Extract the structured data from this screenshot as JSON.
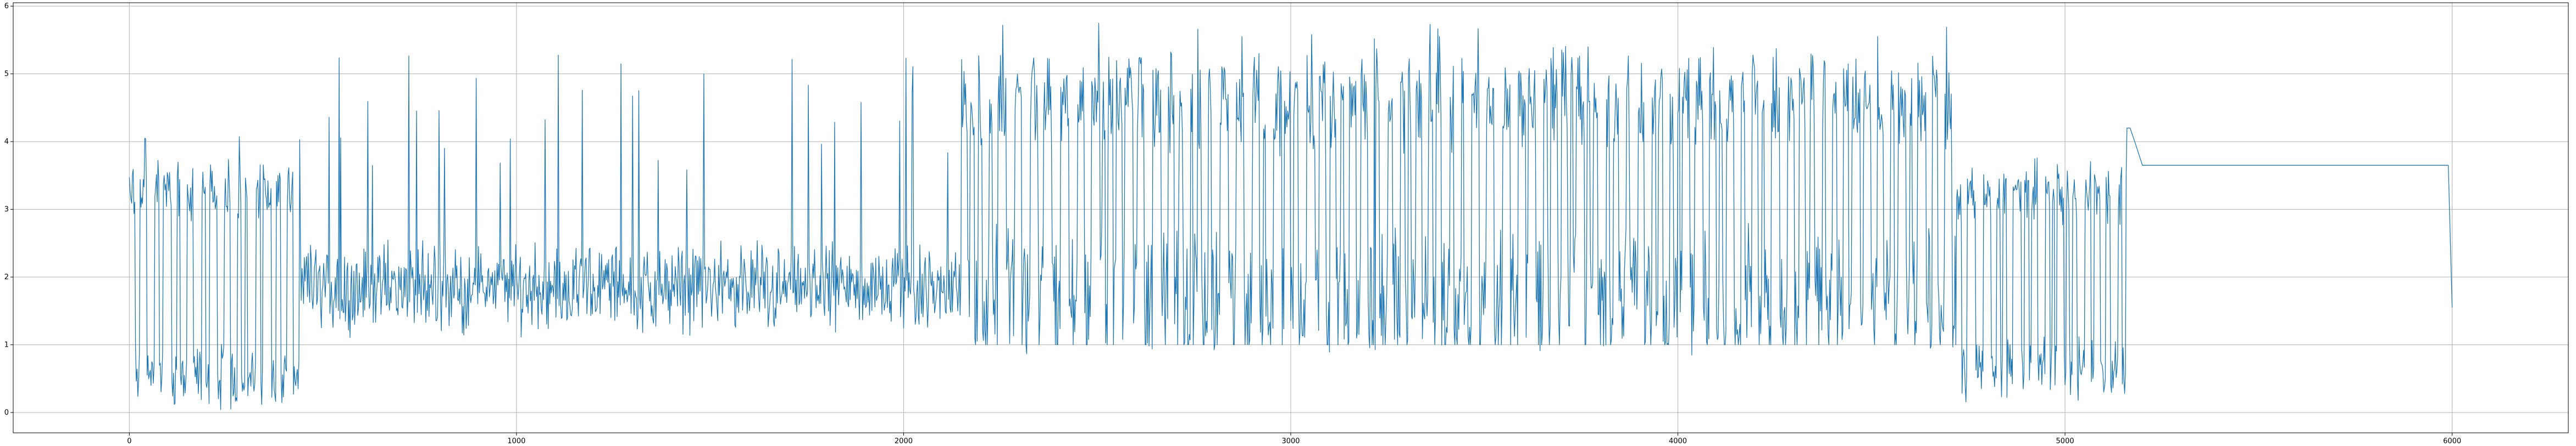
{
  "chart_data": {
    "type": "line",
    "title": "",
    "xlabel": "",
    "ylabel": "",
    "xlim": [
      -300,
      6300
    ],
    "ylim": [
      -0.3,
      6.05
    ],
    "grid": true,
    "line_color": "#1f77b4",
    "x_ticks": [
      0,
      1000,
      2000,
      3000,
      4000,
      5000,
      6000
    ],
    "x_tick_labels": [
      "0",
      "1000",
      "2000",
      "3000",
      "4000",
      "5000",
      "6000"
    ],
    "y_ticks": [
      0,
      1,
      2,
      3,
      4,
      5,
      6
    ],
    "y_tick_labels": [
      "0",
      "1",
      "2",
      "3",
      "4",
      "5",
      "6"
    ],
    "series": [
      {
        "segments": [
          {
            "x_start": 0,
            "x_end": 440,
            "pattern": "oscillating",
            "low": 0.2,
            "high": 3.6,
            "spike_max": 4.1
          },
          {
            "x_start": 440,
            "x_end": 2150,
            "pattern": "noisy_band_with_spikes",
            "low": 1.0,
            "high": 2.3,
            "spike_max": 5.4
          },
          {
            "x_start": 2150,
            "x_end": 4720,
            "pattern": "oscillating_with_noise",
            "low": 1.0,
            "high": 5.2,
            "spike_max": 5.8
          },
          {
            "x_start": 4720,
            "x_end": 5160,
            "pattern": "oscillating",
            "low": 0.3,
            "high": 3.5,
            "spike_max": 3.9
          },
          {
            "x_start": 5160,
            "x_end": 5200,
            "pattern": "peak",
            "low": 3.65,
            "high": 4.2,
            "spike_max": 4.2
          },
          {
            "x_start": 5200,
            "x_end": 5990,
            "pattern": "flat",
            "value": 3.65
          },
          {
            "x_start": 5990,
            "x_end": 6000,
            "pattern": "drop",
            "value": 1.55
          }
        ]
      }
    ]
  }
}
